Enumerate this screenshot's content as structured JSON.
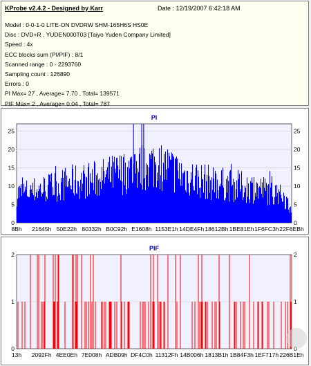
{
  "header": {
    "title": "KProbe v2.4.2 - Designed by Karr",
    "date": "Date : 12/19/2007 6:42:18 AM"
  },
  "info_lines": [
    "Model : 0-0-1-0 LITE-ON DVDRW SHM-165H6S HS0E",
    "Disc : DVD+R , YUDEN000T03 [Taiyo Yuden Company Limited]",
    "Speed : 4x",
    "ECC blocks sum (PI/PIF) : 8/1",
    "Scanned range : 0 - 2293760",
    "Sampling count : 126890",
    "Errors : 0",
    "PI Max= 27 , Average= 7.70 , Total= 139571",
    "PIF Max= 2 , Average= 0.04 , Total= 787"
  ],
  "colors": {
    "series": "#0000ff",
    "pif": "#ff0000",
    "plot_bg": "#f0f0ff",
    "grid": "#cccccc",
    "title": "#0000cc"
  },
  "chart_data": [
    {
      "type": "bar",
      "title": "PI",
      "ylim": [
        0,
        27
      ],
      "yticks": [
        "0",
        "5",
        "10",
        "15",
        "20",
        "25"
      ],
      "xticks": [
        "8Bh",
        "21645h",
        "50E22h",
        "80332h",
        "B0C92h",
        "E1608h",
        "1153E1h",
        "14DE4Fh",
        "18612Bh",
        "1BE81Eh",
        "1F6FC3h",
        "22F6EBh"
      ],
      "max": 27,
      "average": 7.7,
      "profile": [
        [
          0,
          8
        ],
        [
          0.08,
          9
        ],
        [
          0.2,
          11
        ],
        [
          0.3,
          12
        ],
        [
          0.4,
          14
        ],
        [
          0.5,
          16
        ],
        [
          0.55,
          15
        ],
        [
          0.6,
          13
        ],
        [
          0.7,
          11
        ],
        [
          0.8,
          10
        ],
        [
          0.9,
          9
        ],
        [
          0.97,
          7
        ],
        [
          1,
          4
        ]
      ]
    },
    {
      "type": "bar",
      "title": "PIF",
      "ylim": [
        0,
        2
      ],
      "yticks": [
        "0",
        "1",
        "2"
      ],
      "xticks": [
        "13h",
        "2092Fh",
        "4EE0Eh",
        "7E008h",
        "ADB09h",
        "DF4C0h",
        "11312Fh",
        "14B006h",
        "1813B1h",
        "1B84F3h",
        "1EF717h",
        "226B1Eh"
      ],
      "max": 2,
      "average": 0.04
    }
  ]
}
